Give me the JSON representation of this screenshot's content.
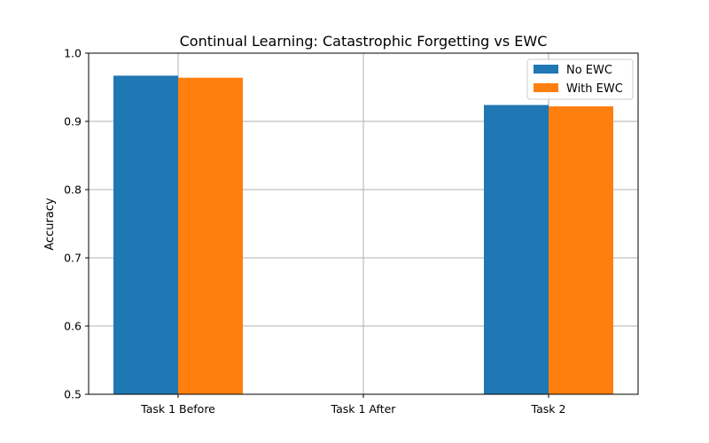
{
  "chart_data": {
    "type": "bar",
    "title": "Continual Learning: Catastrophic Forgetting vs EWC",
    "xlabel": "",
    "ylabel": "Accuracy",
    "categories": [
      "Task 1 Before",
      "Task 1 After",
      "Task 2"
    ],
    "series": [
      {
        "name": "No EWC",
        "color": "#1f77b4",
        "values": [
          0.967,
          null,
          0.924
        ]
      },
      {
        "name": "With EWC",
        "color": "#ff7f0e",
        "values": [
          0.964,
          null,
          0.922
        ]
      }
    ],
    "ylim": [
      0.5,
      1.0
    ],
    "yticks": [
      "0.5",
      "0.6",
      "0.7",
      "0.8",
      "0.9",
      "1.0"
    ],
    "grid": true,
    "legend_position": "top-right"
  }
}
